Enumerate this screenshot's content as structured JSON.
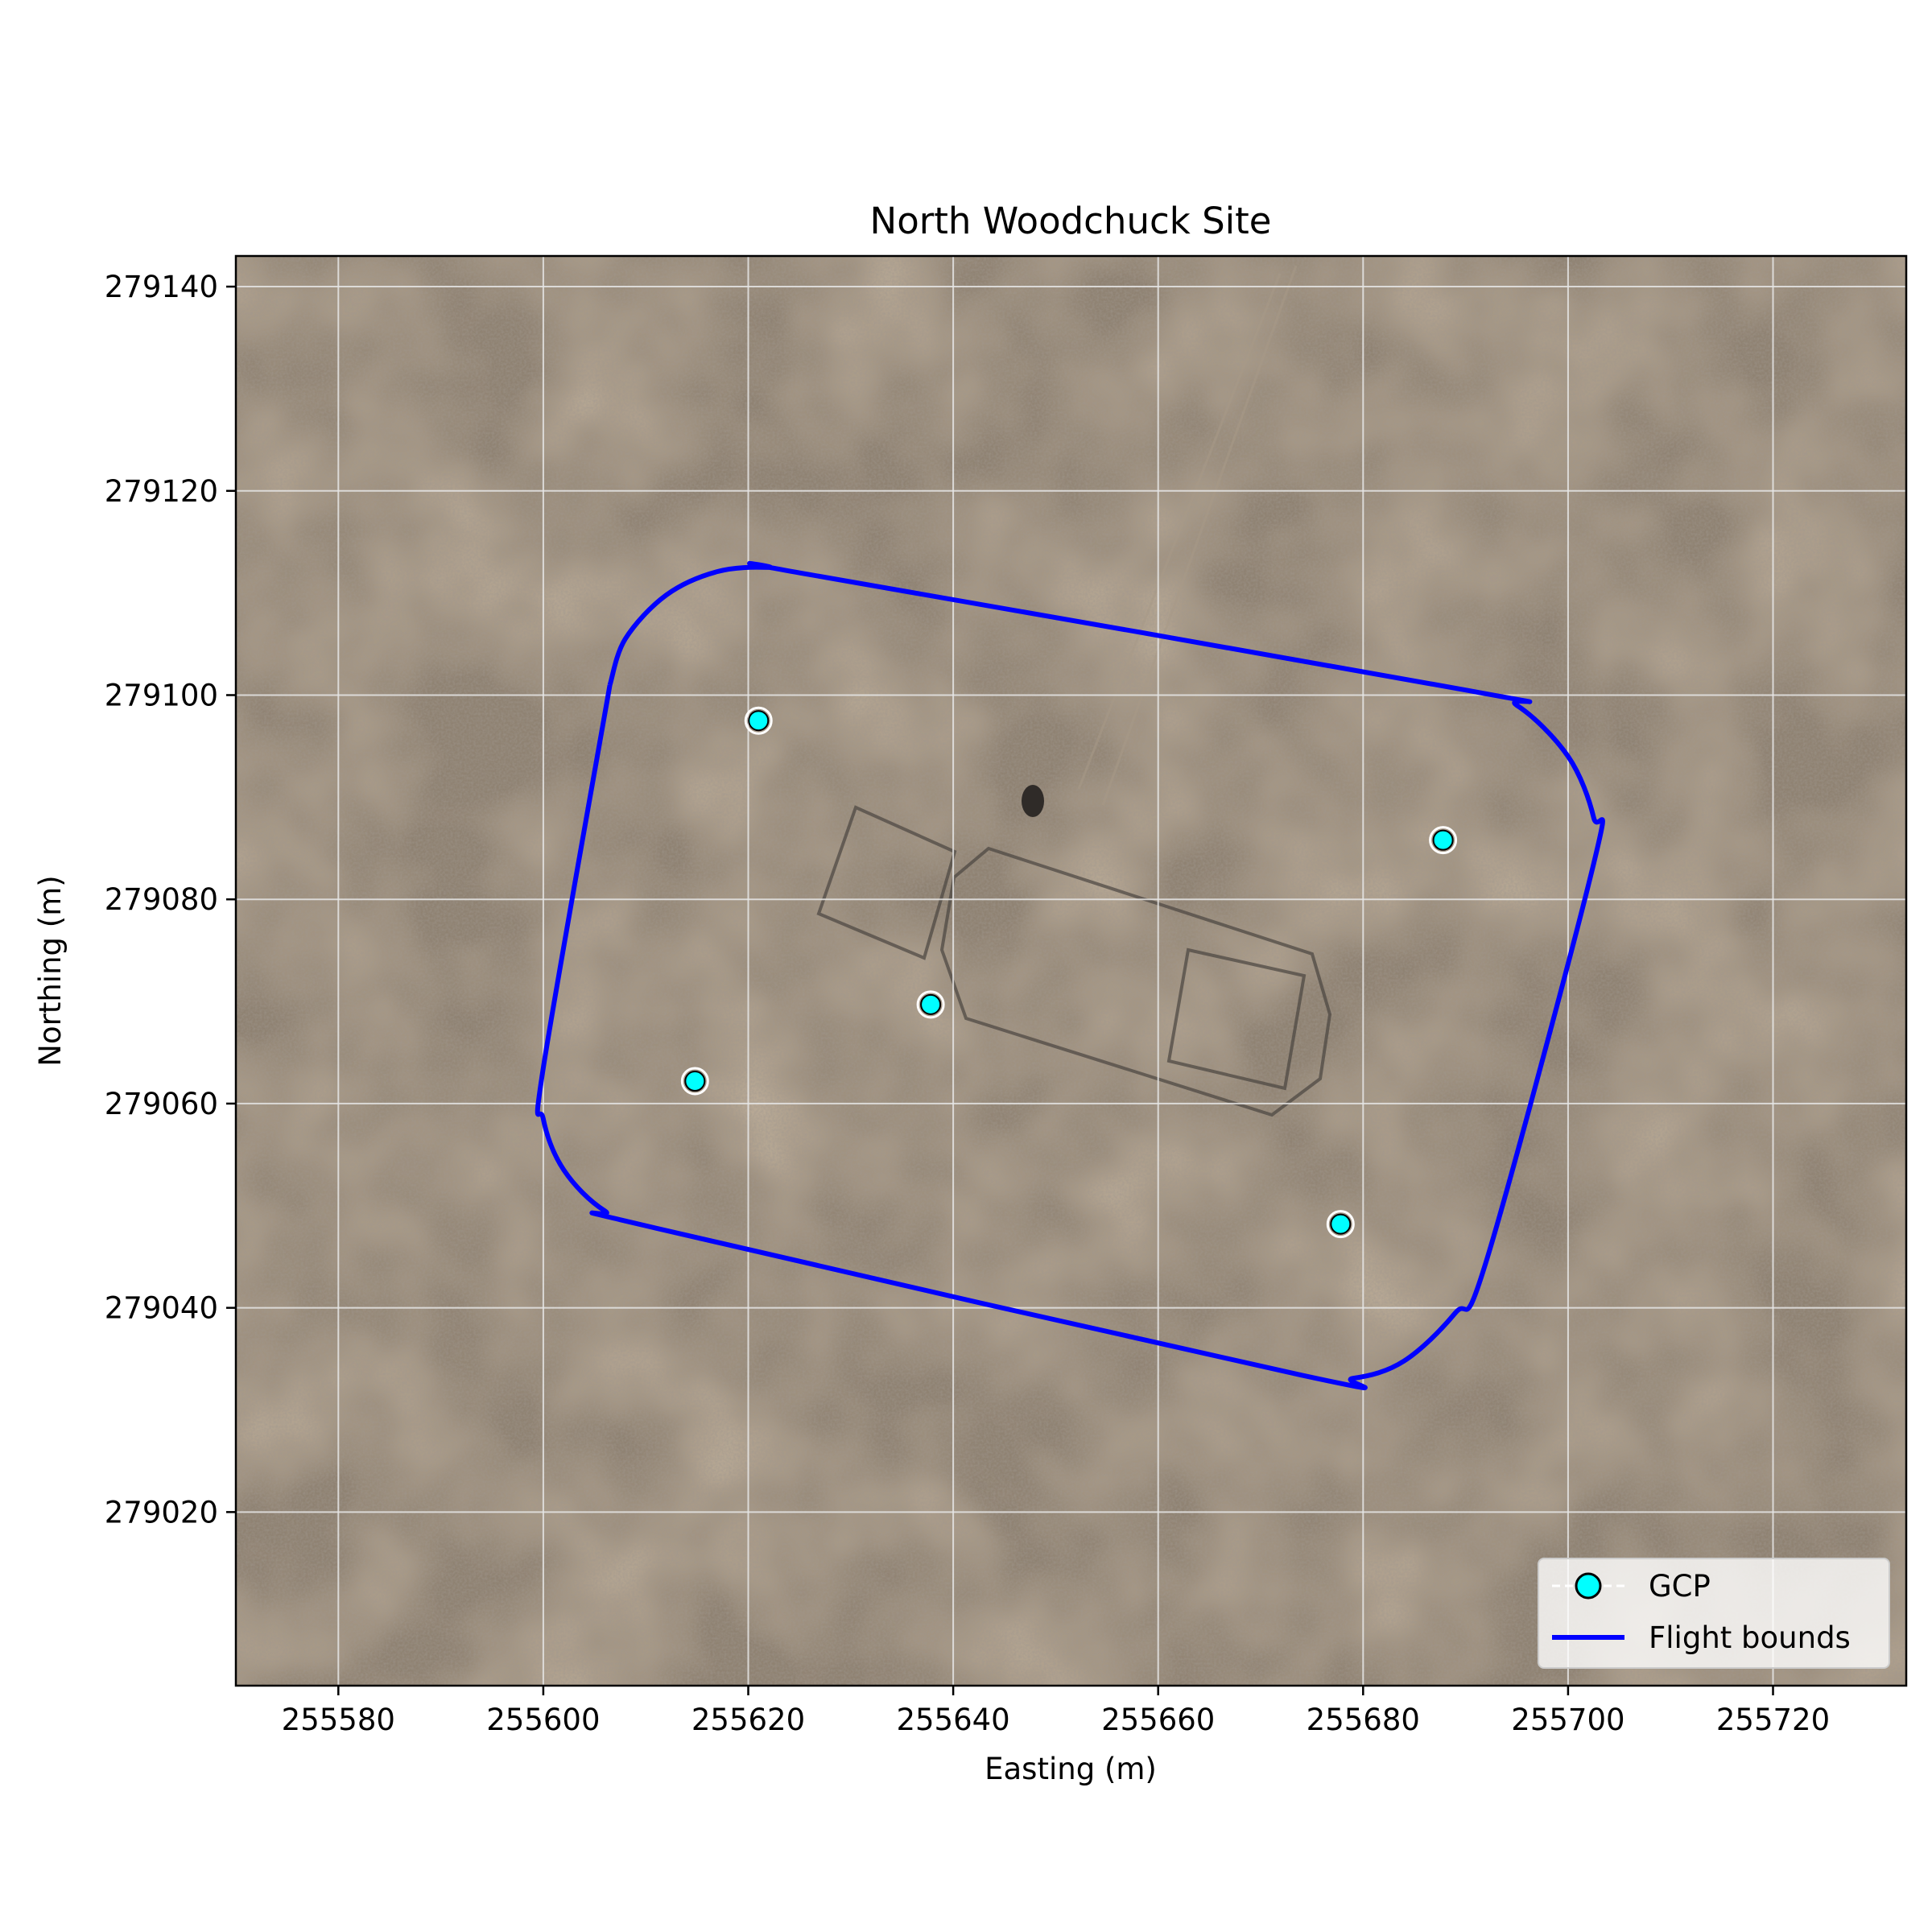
{
  "title": "North Woodchuck Site",
  "chart_data": {
    "type": "map",
    "xlabel": "Easting (m)",
    "ylabel": "Northing (m)",
    "xlim": [
      255570,
      255733
    ],
    "ylim": [
      279003,
      279143
    ],
    "xticks": [
      255580,
      255600,
      255620,
      255640,
      255660,
      255680,
      255700,
      255720
    ],
    "yticks": [
      279020,
      279040,
      279060,
      279080,
      279100,
      279120,
      279140
    ],
    "grid": true,
    "legend_position": "lower-right",
    "background": "aerial imagery",
    "series": [
      {
        "name": "GCP",
        "kind": "points",
        "color": "#00ffff",
        "points": [
          {
            "x": 255621,
            "y": 279097.5
          },
          {
            "x": 255687.8,
            "y": 279085.8
          },
          {
            "x": 255637.8,
            "y": 279069.7
          },
          {
            "x": 255614.8,
            "y": 279062.2
          },
          {
            "x": 255677.8,
            "y": 279048.2
          }
        ]
      },
      {
        "name": "Flight bounds",
        "kind": "line",
        "color": "#0000ff",
        "points": [
          {
            "x": 255606.5,
            "y": 279101
          },
          {
            "x": 255608,
            "y": 279105.5
          },
          {
            "x": 255612,
            "y": 279109.8
          },
          {
            "x": 255617,
            "y": 279112.1
          },
          {
            "x": 255622,
            "y": 279112.5
          },
          {
            "x": 255626,
            "y": 279111.8
          },
          {
            "x": 255690,
            "y": 279100.5
          },
          {
            "x": 255695,
            "y": 279099
          },
          {
            "x": 255700,
            "y": 279094
          },
          {
            "x": 255702.5,
            "y": 279088
          },
          {
            "x": 255702.5,
            "y": 279083.5
          },
          {
            "x": 255692,
            "y": 279044.5
          },
          {
            "x": 255689,
            "y": 279039.5
          },
          {
            "x": 255684,
            "y": 279034.8
          },
          {
            "x": 255679,
            "y": 279033.1
          },
          {
            "x": 255674,
            "y": 279033.4
          },
          {
            "x": 255611,
            "y": 279047.8
          },
          {
            "x": 255606,
            "y": 279049.5
          },
          {
            "x": 255602,
            "y": 279053.5
          },
          {
            "x": 255600,
            "y": 279058.5
          },
          {
            "x": 255600,
            "y": 279063.5
          },
          {
            "x": 255606.5,
            "y": 279101
          }
        ]
      }
    ]
  }
}
